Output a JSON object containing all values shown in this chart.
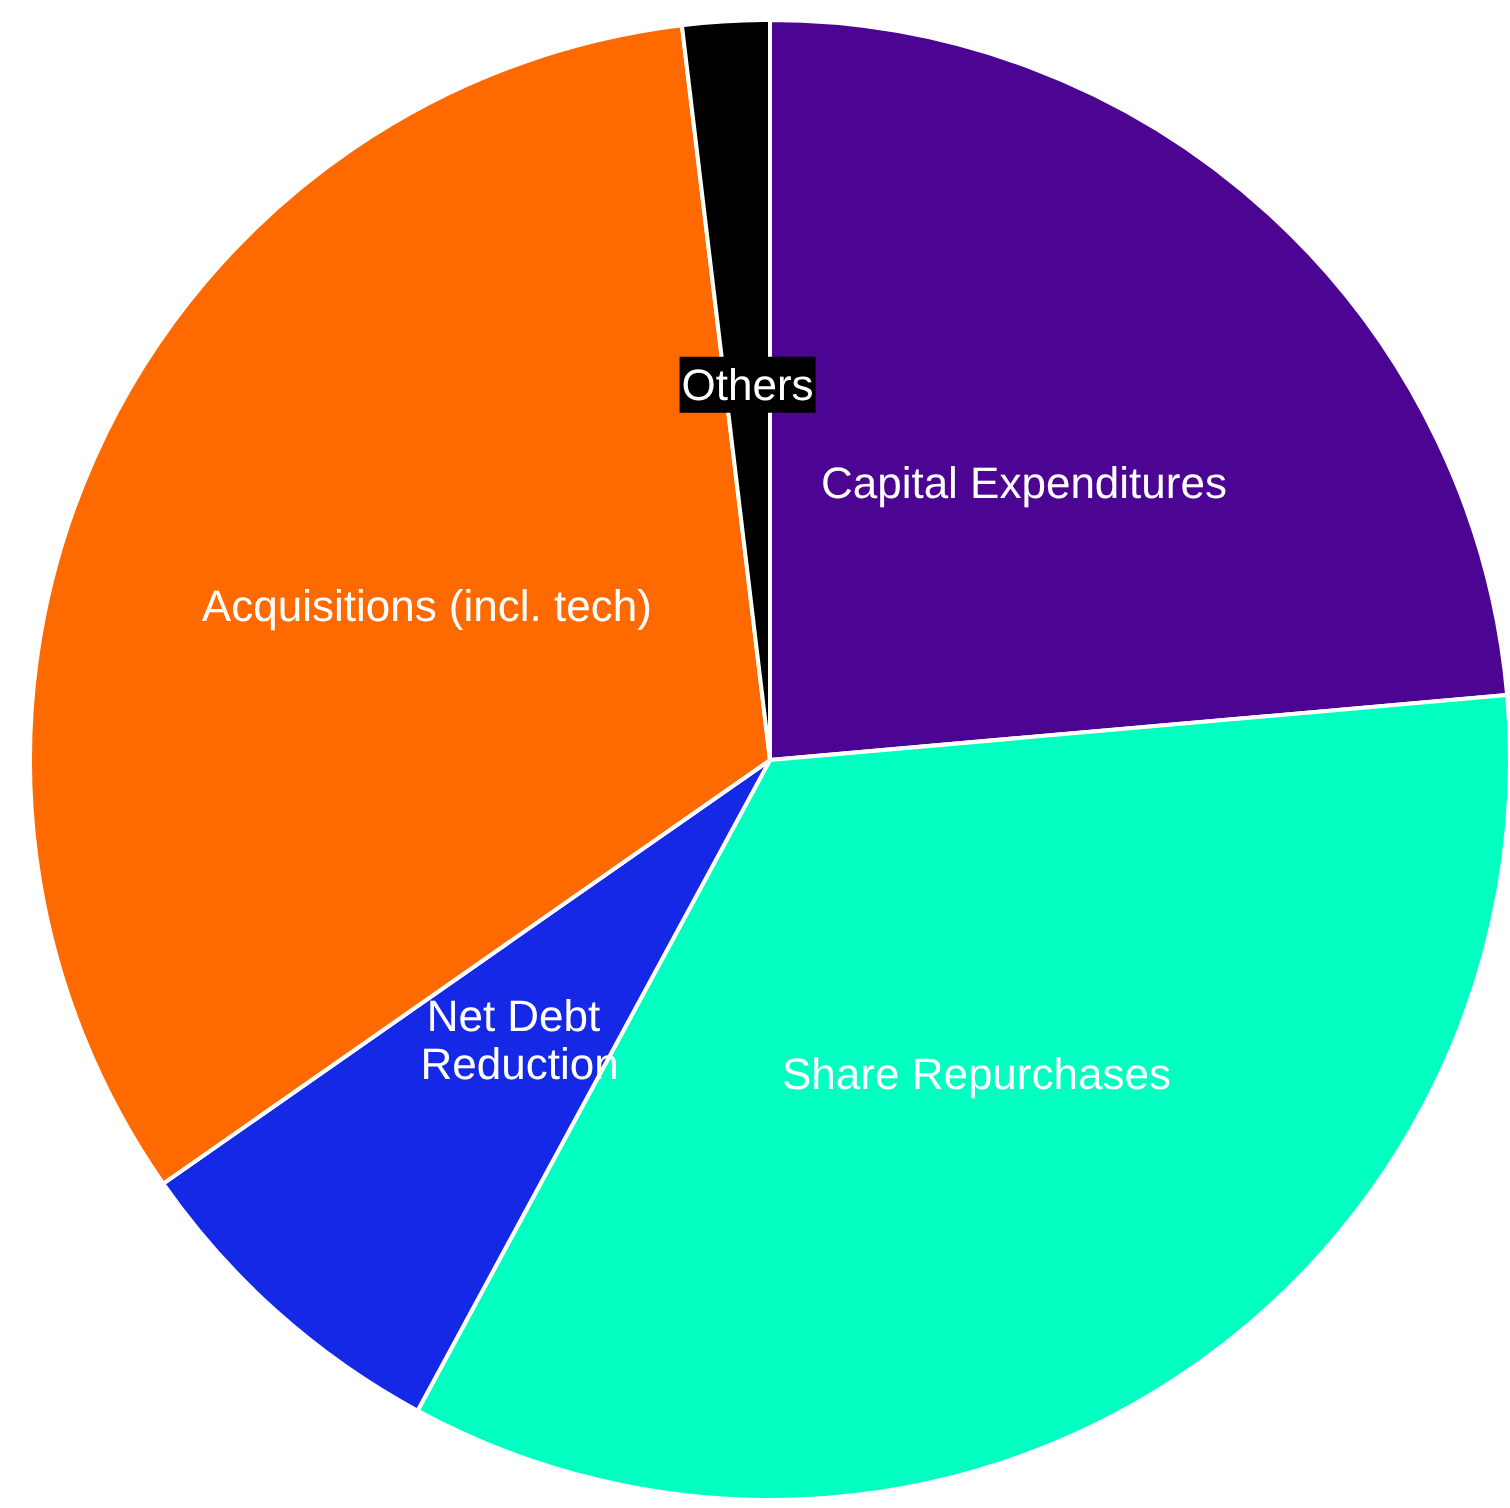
{
  "chart_data": {
    "type": "pie",
    "categories": [
      "Capital Expenditures",
      "Share Repurchases",
      "Net Debt Reduction",
      "Acquisitions (incl. tech)",
      "Others"
    ],
    "values": [
      23.6,
      34.3,
      7.4,
      32.8,
      1.9
    ],
    "colors": [
      "#4b0592",
      "#00ffc0",
      "#1428e6",
      "#ff6a00",
      "#000000"
    ],
    "legend": false
  }
}
